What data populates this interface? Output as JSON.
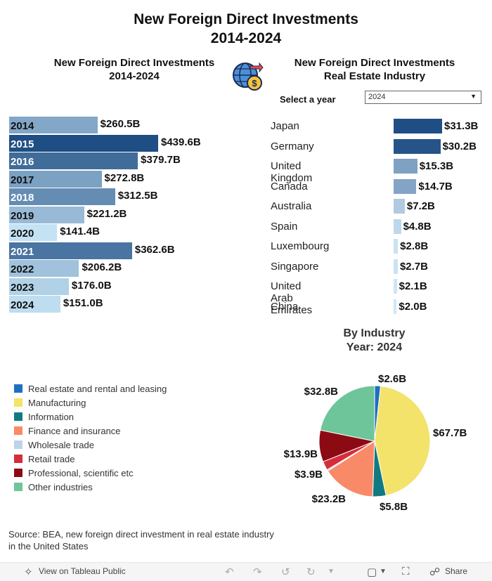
{
  "title": {
    "line1": "New Foreign Direct Investments",
    "line2": "2014-2024"
  },
  "left_chart": {
    "title_line1": "New Foreign Direct Investments",
    "title_line2": "2014-2024"
  },
  "right_chart": {
    "title_line1": "New Foreign Direct Investments",
    "title_line2": "Real Estate Industry",
    "select_label": "Select a year",
    "selected_year": "2024"
  },
  "pie_chart": {
    "title_line1": "By Industry",
    "title_line2": "Year: 2024"
  },
  "legend": [
    {
      "label": "Real estate and rental and leasing",
      "color": "#1f6fbf"
    },
    {
      "label": "Manufacturing",
      "color": "#f3e36b"
    },
    {
      "label": "Information",
      "color": "#117a80"
    },
    {
      "label": "Finance and insurance",
      "color": "#f98a68"
    },
    {
      "label": "Wholesale trade",
      "color": "#bdd3e8"
    },
    {
      "label": "Retail trade",
      "color": "#d52d3a"
    },
    {
      "label": "Professional, scientific etc",
      "color": "#8c0a14"
    },
    {
      "label": "Other industries",
      "color": "#6ec599"
    }
  ],
  "source": {
    "line1": "Source: BEA, new foreign direct investment in real estate industry",
    "line2": "in the United States"
  },
  "toolbar": {
    "view_label": "View on Tableau Public",
    "share_label": "Share"
  },
  "chart_data": [
    {
      "type": "bar",
      "orientation": "horizontal",
      "title": "New Foreign Direct Investments 2014-2024",
      "categories": [
        "2014",
        "2015",
        "2016",
        "2017",
        "2018",
        "2019",
        "2020",
        "2021",
        "2022",
        "2023",
        "2024"
      ],
      "values": [
        260.5,
        439.6,
        379.7,
        272.8,
        312.5,
        221.2,
        141.4,
        362.6,
        206.2,
        176.0,
        151.0
      ],
      "labels": [
        "$260.5B",
        "$439.6B",
        "$379.7B",
        "$272.8B",
        "$312.5B",
        "$221.2B",
        "$141.4B",
        "$362.6B",
        "$206.2B",
        "$176.0B",
        "$151.0B"
      ],
      "unit": "billion USD",
      "color_scale": {
        "low": "#c4e2f4",
        "high": "#1f4e84"
      }
    },
    {
      "type": "bar",
      "orientation": "horizontal",
      "title": "New Foreign Direct Investments Real Estate Industry",
      "categories": [
        "Japan",
        "Germany",
        "United Kingdom",
        "Canada",
        "Australia",
        "Spain",
        "Luxembourg",
        "Singapore",
        "United Arab Emirates",
        "China"
      ],
      "values": [
        31.3,
        30.2,
        15.3,
        14.7,
        7.2,
        4.8,
        2.8,
        2.7,
        2.1,
        2.0
      ],
      "labels": [
        "$31.3B",
        "$30.2B",
        "$15.3B",
        "$14.7B",
        "$7.2B",
        "$4.8B",
        "$2.8B",
        "$2.7B",
        "$2.1B",
        "$2.0B"
      ],
      "unit": "billion USD",
      "color_scale": {
        "low": "#cfe6f5",
        "high": "#1f4e84"
      }
    },
    {
      "type": "pie",
      "title": "By Industry Year: 2024",
      "categories": [
        "Real estate and rental and leasing",
        "Manufacturing",
        "Information",
        "Finance and insurance",
        "Wholesale trade",
        "Retail trade",
        "Professional, scientific etc",
        "Other industries"
      ],
      "values": [
        2.6,
        67.7,
        5.8,
        23.2,
        0.6,
        3.9,
        13.9,
        32.8
      ],
      "labels": [
        "$2.6B",
        "$67.7B",
        "$5.8B",
        "$23.2B",
        "",
        "$3.9B",
        "$13.9B",
        "$32.8B"
      ],
      "colors": [
        "#1f6fbf",
        "#f3e36b",
        "#117a80",
        "#f98a68",
        "#bdd3e8",
        "#d52d3a",
        "#8c0a14",
        "#6ec599"
      ]
    }
  ]
}
